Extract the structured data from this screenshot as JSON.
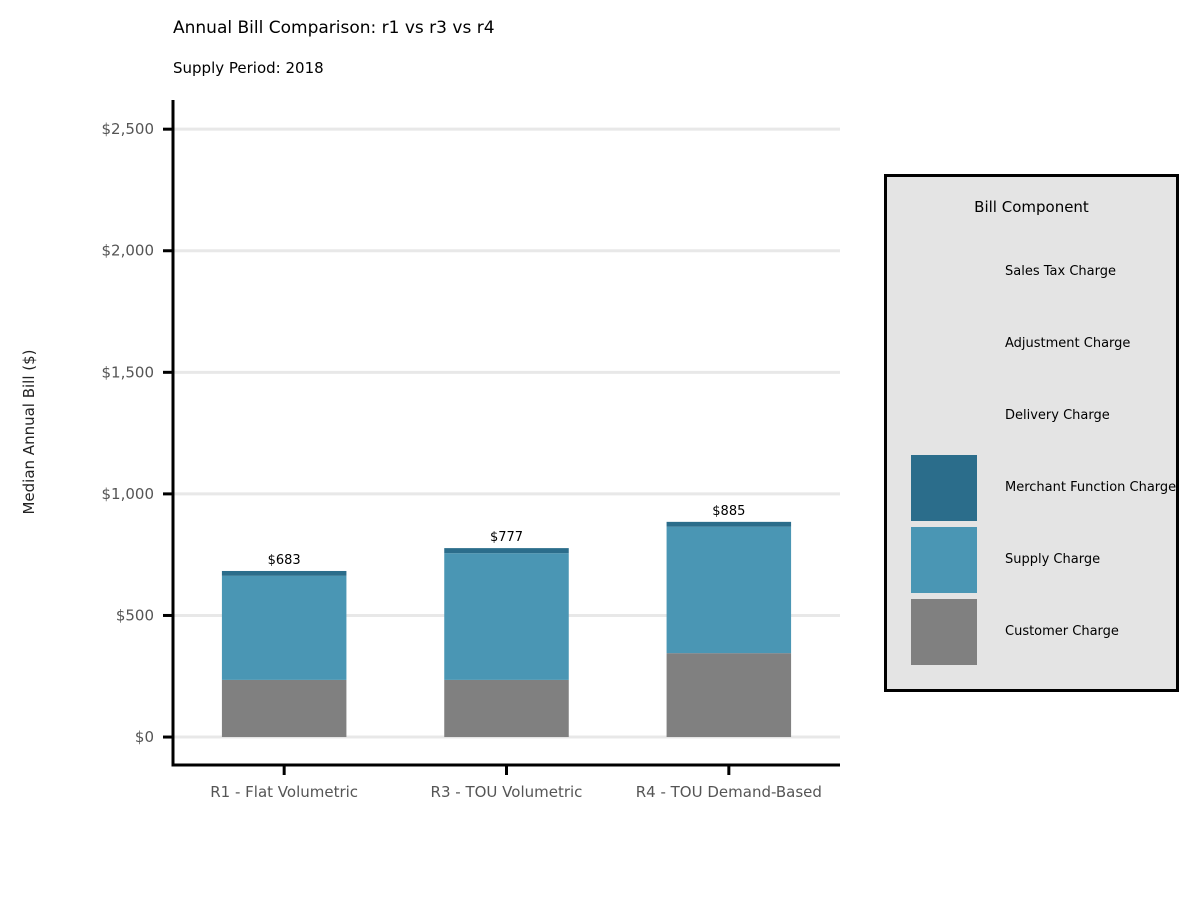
{
  "chart_data": {
    "type": "bar",
    "stacked": true,
    "title": "Annual Bill Comparison: r1 vs r3 vs r4",
    "subtitle": "Supply Period: 2018",
    "ylabel": "Median Annual Bill ($)",
    "xlabel": "",
    "categories": [
      "R1 - Flat Volumetric",
      "R3 - TOU Volumetric",
      "R4 - TOU Demand-Based"
    ],
    "ylim": [
      -115,
      2620
    ],
    "yticks": [
      0,
      500,
      1000,
      1500,
      2000,
      2500
    ],
    "ytick_labels": [
      "$0",
      "$500",
      "$1,000",
      "$1,500",
      "$2,000",
      "$2,500"
    ],
    "grid": "horizontal",
    "series": [
      {
        "name": "Customer Charge",
        "color": "#808080",
        "values": [
          235,
          235,
          345
        ]
      },
      {
        "name": "Supply Charge",
        "color": "#4a96b4",
        "values": [
          428,
          521,
          520
        ]
      },
      {
        "name": "Merchant Function Charge",
        "color": "#2b6d8b",
        "values": [
          20,
          21,
          20
        ]
      },
      {
        "name": "Delivery Charge",
        "color": "#8fc4d6",
        "values": [
          0,
          0,
          0
        ]
      },
      {
        "name": "Adjustment Charge",
        "color": "#c6e2ea",
        "values": [
          0,
          0,
          0
        ]
      },
      {
        "name": "Sales Tax Charge",
        "color": "#b0b0b0",
        "values": [
          0,
          0,
          0
        ]
      }
    ],
    "totals": [
      683,
      777,
      885
    ],
    "total_labels": [
      "$683",
      "$777",
      "$885"
    ],
    "legend": {
      "title": "Bill Component",
      "placement": "right",
      "entries": [
        {
          "label": "Sales Tax Charge",
          "color": ""
        },
        {
          "label": "Adjustment Charge",
          "color": ""
        },
        {
          "label": "Delivery Charge",
          "color": ""
        },
        {
          "label": "Merchant Function Charge",
          "color": "#2b6d8b"
        },
        {
          "label": "Supply Charge",
          "color": "#4a96b4"
        },
        {
          "label": "Customer Charge",
          "color": "#808080"
        }
      ]
    }
  }
}
